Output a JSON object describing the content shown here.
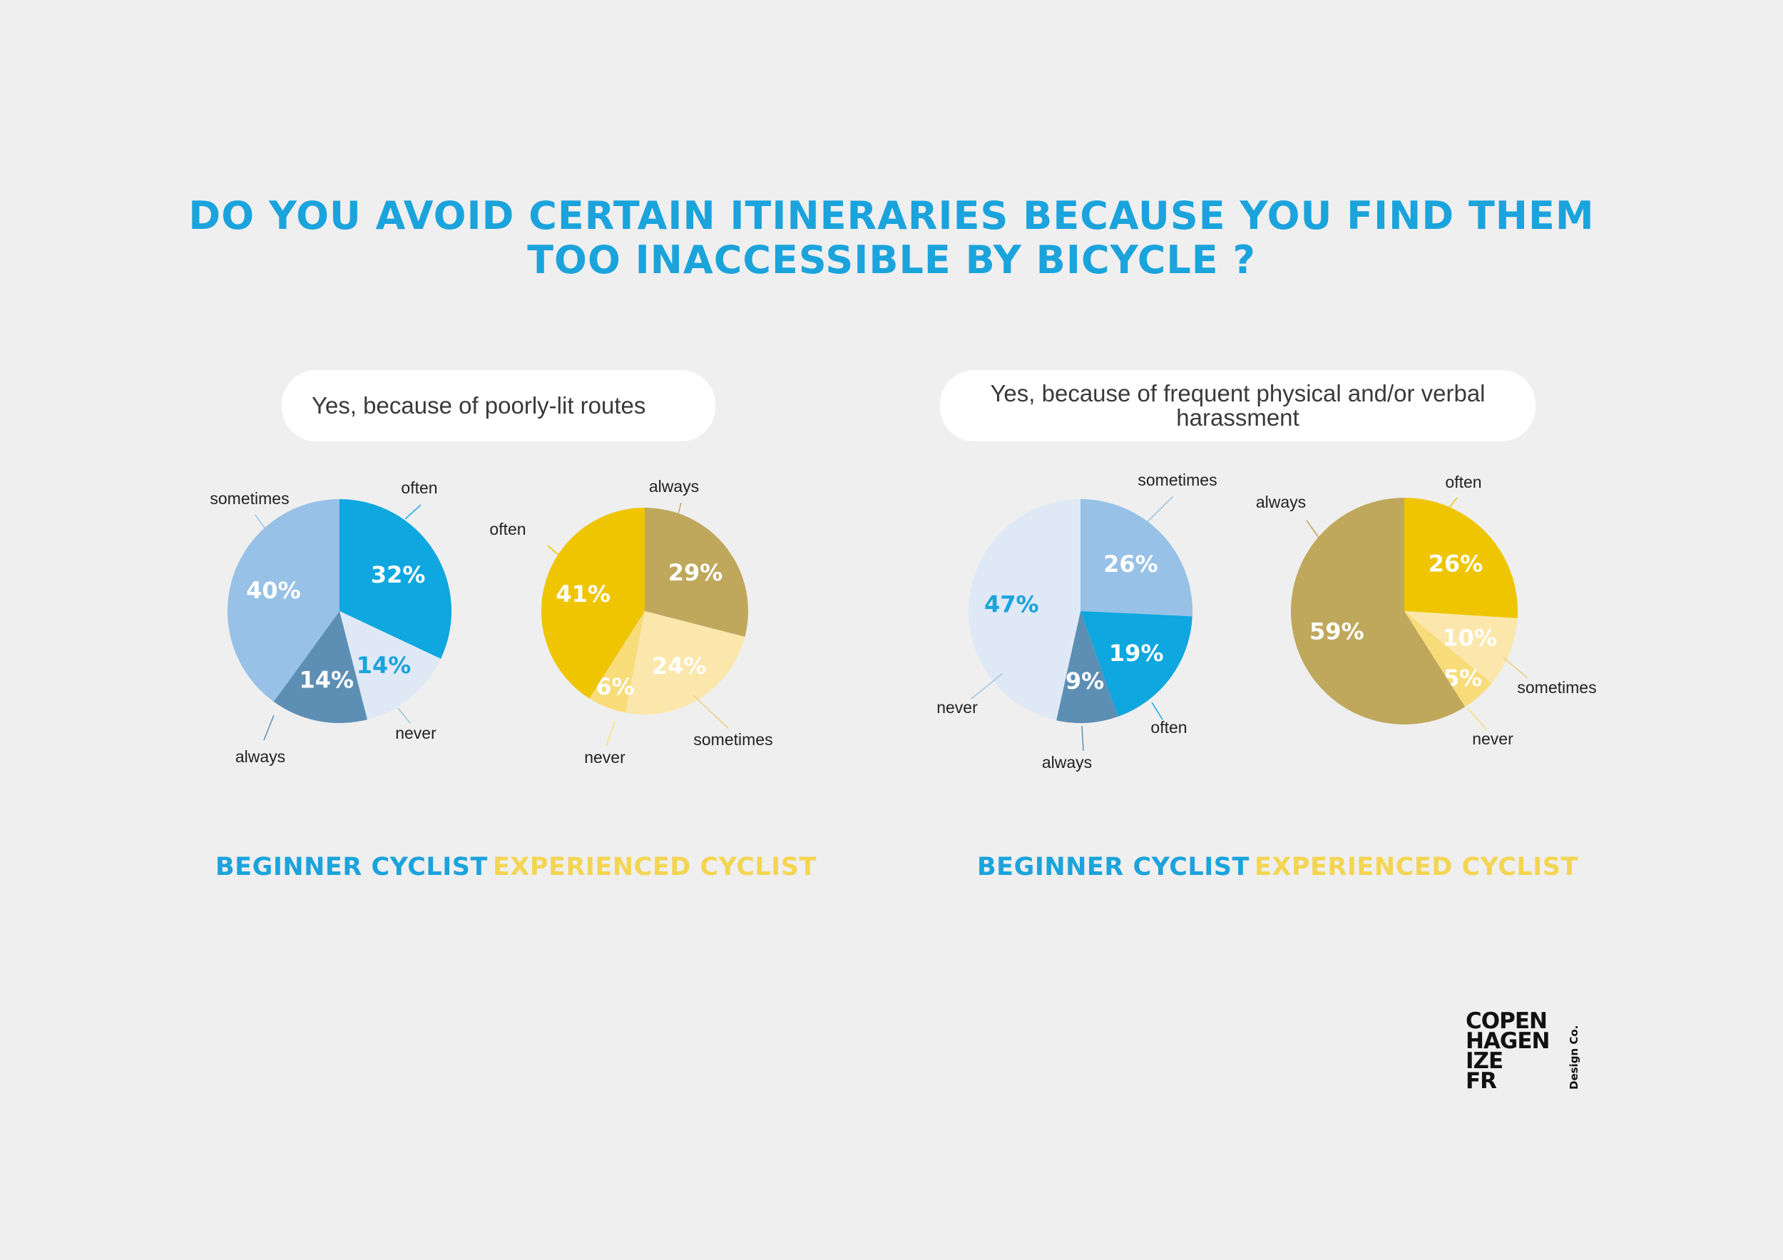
{
  "title_lines": [
    "DO YOU AVOID CERTAIN ITINERARIES BECAUSE YOU FIND THEM",
    "TOO INACCESSIBLE BY BICYCLE ?"
  ],
  "questions": [
    "Yes, because of poorly-lit routes",
    "Yes, because of frequent physical and/or verbal harassment"
  ],
  "groups": {
    "beginner": "BEGINNER CYCLIST",
    "experienced": "EXPERIENCED CYCLIST"
  },
  "colors": {
    "title": "#1ba3dc",
    "beginner_often": "#0ea7df",
    "beginner_never": "#dfe9f6",
    "beginner_always": "#5d8fb5",
    "beginner_sometimes": "#97c1e6",
    "experienced_always": "#bfa85c",
    "experienced_sometimes": "#fbe7ab",
    "experienced_never": "#f8dc7a",
    "experienced_often": "#eec500"
  },
  "chart_data": [
    {
      "type": "pie",
      "question": "Yes, because of poorly-lit routes",
      "group": "BEGINNER CYCLIST",
      "slices": [
        {
          "label": "often",
          "value": 32,
          "text": "32%",
          "color": "#0ea7df",
          "pct_color": "#ffffff"
        },
        {
          "label": "never",
          "value": 14,
          "text": "14%",
          "color": "#dfe9f6",
          "pct_color": "#1ba3dc"
        },
        {
          "label": "always",
          "value": 14,
          "text": "14%",
          "color": "#5d8fb5",
          "pct_color": "#ffffff"
        },
        {
          "label": "sometimes",
          "value": 40,
          "text": "40%",
          "color": "#97c1e6",
          "pct_color": "#ffffff"
        }
      ]
    },
    {
      "type": "pie",
      "question": "Yes, because of poorly-lit routes",
      "group": "EXPERIENCED CYCLIST",
      "slices": [
        {
          "label": "always",
          "value": 29,
          "text": "29%",
          "color": "#bfa85c",
          "pct_color": "#ffffff"
        },
        {
          "label": "sometimes",
          "value": 24,
          "text": "24%",
          "color": "#fbe7ab",
          "pct_color": "#ffffff"
        },
        {
          "label": "never",
          "value": 6,
          "text": "6%",
          "color": "#f8dc7a",
          "pct_color": "#ffffff"
        },
        {
          "label": "often",
          "value": 41,
          "text": "41%",
          "color": "#eec500",
          "pct_color": "#ffffff"
        }
      ]
    },
    {
      "type": "pie",
      "question": "Yes, because of frequent physical and/or verbal harassment",
      "group": "BEGINNER CYCLIST",
      "slices": [
        {
          "label": "sometimes",
          "value": 26,
          "text": "26%",
          "color": "#97c1e6",
          "pct_color": "#ffffff"
        },
        {
          "label": "often",
          "value": 19,
          "text": "19%",
          "color": "#0ea7df",
          "pct_color": "#ffffff"
        },
        {
          "label": "always",
          "value": 9,
          "text": "9%",
          "color": "#5d8fb5",
          "pct_color": "#ffffff"
        },
        {
          "label": "never",
          "value": 47,
          "text": "47%",
          "color": "#dfe9f6",
          "pct_color": "#1ba3dc"
        }
      ]
    },
    {
      "type": "pie",
      "question": "Yes, because of frequent physical and/or verbal harassment",
      "group": "EXPERIENCED CYCLIST",
      "slices": [
        {
          "label": "often",
          "value": 26,
          "text": "26%",
          "color": "#eec500",
          "pct_color": "#ffffff"
        },
        {
          "label": "sometimes",
          "value": 10,
          "text": "10%",
          "color": "#fbe7ab",
          "pct_color": "#ffffff"
        },
        {
          "label": "never",
          "value": 5,
          "text": "5%",
          "color": "#f8dc7a",
          "pct_color": "#ffffff"
        },
        {
          "label": "always",
          "value": 59,
          "text": "59%",
          "color": "#bfa85c",
          "pct_color": "#ffffff"
        }
      ]
    }
  ],
  "logo": {
    "lines": [
      "COPEN",
      "HAGEN",
      "IZE",
      "FR"
    ],
    "side": "Design Co."
  }
}
